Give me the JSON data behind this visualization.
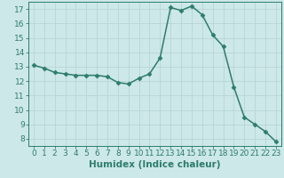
{
  "x": [
    0,
    1,
    2,
    3,
    4,
    5,
    6,
    7,
    8,
    9,
    10,
    11,
    12,
    13,
    14,
    15,
    16,
    17,
    18,
    19,
    20,
    21,
    22,
    23
  ],
  "y": [
    13.1,
    12.9,
    12.6,
    12.5,
    12.4,
    12.4,
    12.4,
    12.3,
    11.9,
    11.8,
    12.2,
    12.5,
    13.6,
    17.1,
    16.9,
    17.2,
    16.6,
    15.2,
    14.4,
    11.6,
    9.5,
    9.0,
    8.5,
    7.8
  ],
  "line_color": "#2d7d6b",
  "marker": "D",
  "marker_size": 2.5,
  "bg_color": "#cde8e8",
  "grid_color": "#b8d4d4",
  "xlabel": "Humidex (Indice chaleur)",
  "xlim": [
    -0.5,
    23.5
  ],
  "ylim": [
    7.5,
    17.5
  ],
  "yticks": [
    8,
    9,
    10,
    11,
    12,
    13,
    14,
    15,
    16,
    17
  ],
  "xticks": [
    0,
    1,
    2,
    3,
    4,
    5,
    6,
    7,
    8,
    9,
    10,
    11,
    12,
    13,
    14,
    15,
    16,
    17,
    18,
    19,
    20,
    21,
    22,
    23
  ],
  "tick_fontsize": 6.5,
  "xlabel_fontsize": 7.5,
  "spine_color": "#2d7d6b",
  "line_width": 1.1
}
